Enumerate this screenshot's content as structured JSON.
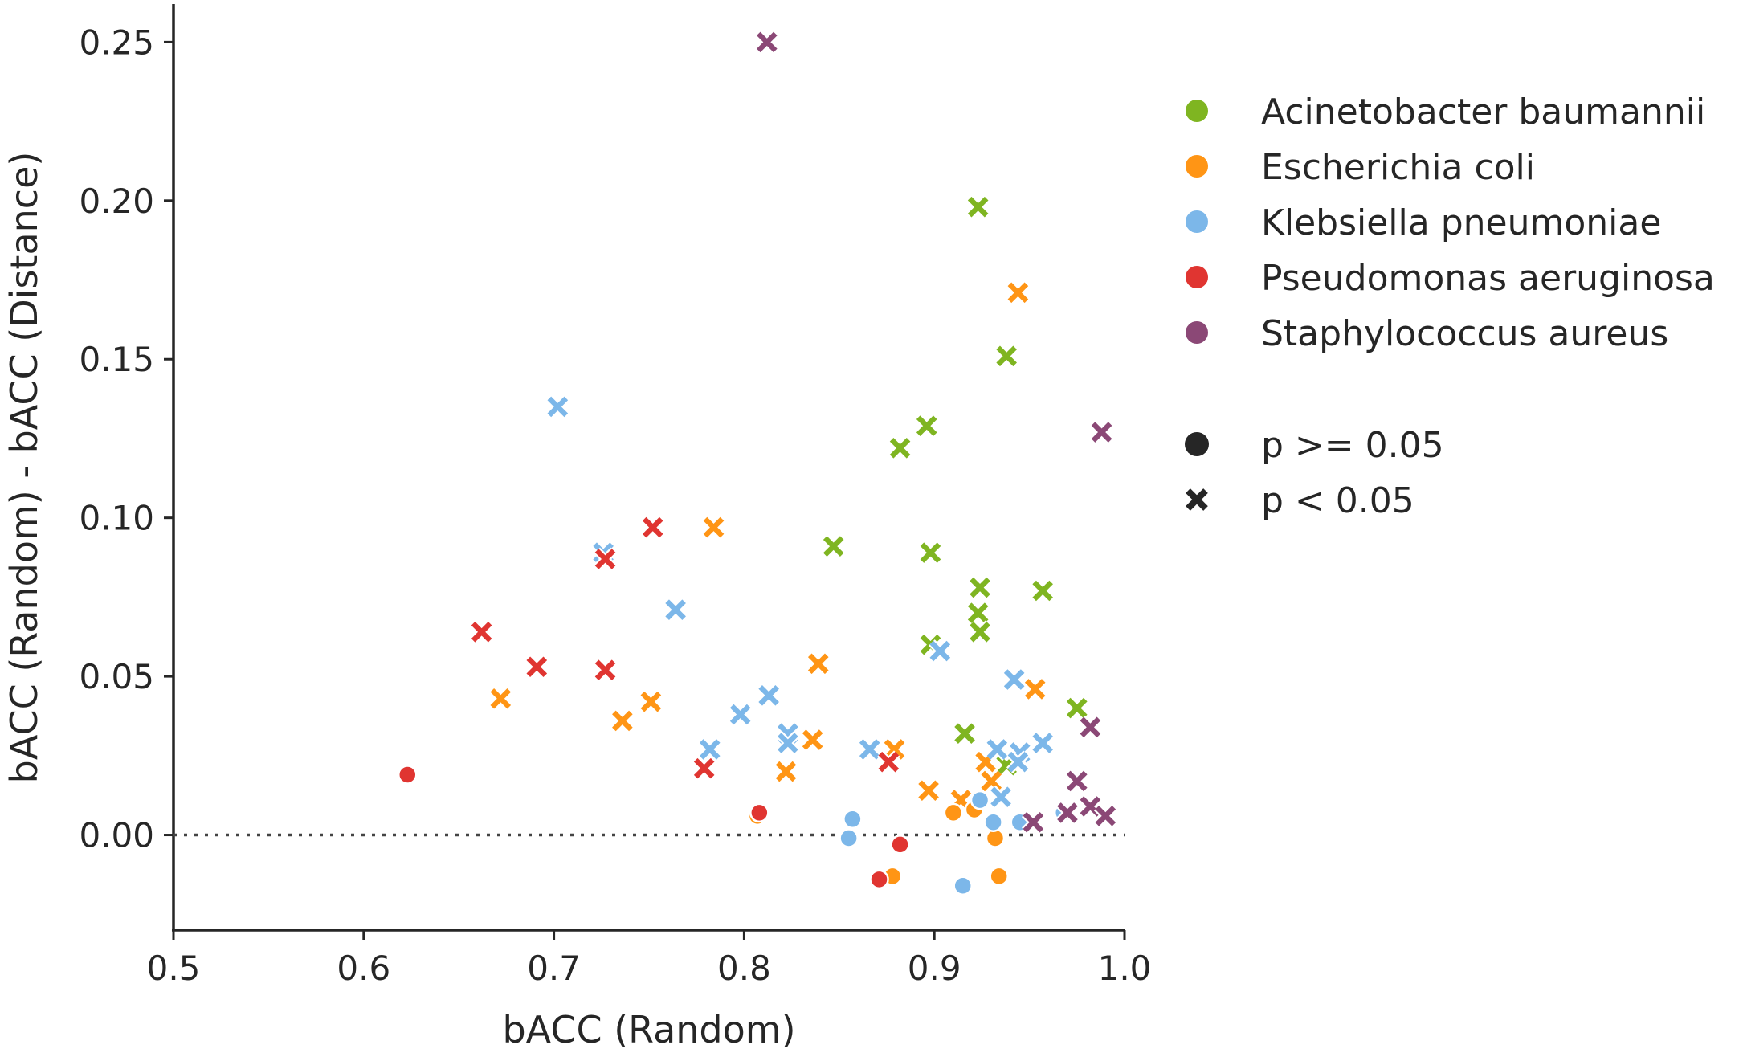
{
  "chart_data": {
    "type": "scatter",
    "title": "",
    "xlabel": "bACC (Random)",
    "ylabel": "bACC (Random) - bACC (Distance)",
    "xlim": [
      0.5,
      1.0
    ],
    "ylim": [
      -0.03,
      0.262
    ],
    "xticks": [
      "0.5",
      "0.6",
      "0.7",
      "0.8",
      "0.9",
      "1.0"
    ],
    "yticks": [
      "0.00",
      "0.05",
      "0.10",
      "0.15",
      "0.20",
      "0.25"
    ],
    "reference_line": {
      "y": 0,
      "style": "dotted"
    },
    "legend": {
      "placement": "right",
      "hue_entries": [
        "Acinetobacter baumannii",
        "Escherichia coli",
        "Klebsiella pneumoniae",
        "Pseudomonas aeruginosa",
        "Staphylococcus aureus"
      ],
      "style_entries": [
        {
          "label": "p >= 0.05",
          "marker": "circle"
        },
        {
          "label": "p < 0.05",
          "marker": "x"
        }
      ]
    },
    "series": [
      {
        "name": "Acinetobacter baumannii",
        "color": "#7fb521",
        "points": [
          {
            "x": 0.923,
            "y": 0.198,
            "p": "<0.05"
          },
          {
            "x": 0.938,
            "y": 0.151,
            "p": "<0.05"
          },
          {
            "x": 0.896,
            "y": 0.129,
            "p": "<0.05"
          },
          {
            "x": 0.882,
            "y": 0.122,
            "p": "<0.05"
          },
          {
            "x": 0.847,
            "y": 0.091,
            "p": "<0.05"
          },
          {
            "x": 0.898,
            "y": 0.089,
            "p": "<0.05"
          },
          {
            "x": 0.924,
            "y": 0.078,
            "p": "<0.05"
          },
          {
            "x": 0.957,
            "y": 0.077,
            "p": "<0.05"
          },
          {
            "x": 0.923,
            "y": 0.07,
            "p": "<0.05"
          },
          {
            "x": 0.924,
            "y": 0.064,
            "p": "<0.05"
          },
          {
            "x": 0.898,
            "y": 0.06,
            "p": "<0.05"
          },
          {
            "x": 0.975,
            "y": 0.04,
            "p": "<0.05"
          },
          {
            "x": 0.916,
            "y": 0.032,
            "p": "<0.05"
          },
          {
            "x": 0.938,
            "y": 0.022,
            "p": "<0.05"
          }
        ]
      },
      {
        "name": "Escherichia coli",
        "color": "#ff9515",
        "points": [
          {
            "x": 0.944,
            "y": 0.171,
            "p": "<0.05"
          },
          {
            "x": 0.784,
            "y": 0.097,
            "p": "<0.05"
          },
          {
            "x": 0.839,
            "y": 0.054,
            "p": "<0.05"
          },
          {
            "x": 0.953,
            "y": 0.046,
            "p": "<0.05"
          },
          {
            "x": 0.672,
            "y": 0.043,
            "p": "<0.05"
          },
          {
            "x": 0.751,
            "y": 0.042,
            "p": "<0.05"
          },
          {
            "x": 0.736,
            "y": 0.036,
            "p": "<0.05"
          },
          {
            "x": 0.836,
            "y": 0.03,
            "p": "<0.05"
          },
          {
            "x": 0.879,
            "y": 0.027,
            "p": "<0.05"
          },
          {
            "x": 0.927,
            "y": 0.023,
            "p": "<0.05"
          },
          {
            "x": 0.822,
            "y": 0.02,
            "p": "<0.05"
          },
          {
            "x": 0.93,
            "y": 0.017,
            "p": "<0.05"
          },
          {
            "x": 0.897,
            "y": 0.014,
            "p": "<0.05"
          },
          {
            "x": 0.914,
            "y": 0.011,
            "p": "<0.05"
          },
          {
            "x": 0.91,
            "y": 0.007,
            "p": ">=0.05"
          },
          {
            "x": 0.921,
            "y": 0.008,
            "p": ">=0.05"
          },
          {
            "x": 0.807,
            "y": 0.006,
            "p": ">=0.05"
          },
          {
            "x": 0.932,
            "y": -0.001,
            "p": ">=0.05"
          },
          {
            "x": 0.878,
            "y": -0.013,
            "p": ">=0.05"
          },
          {
            "x": 0.934,
            "y": -0.013,
            "p": ">=0.05"
          }
        ]
      },
      {
        "name": "Klebsiella pneumoniae",
        "color": "#7cb7e9",
        "points": [
          {
            "x": 0.702,
            "y": 0.135,
            "p": "<0.05"
          },
          {
            "x": 0.726,
            "y": 0.089,
            "p": "<0.05"
          },
          {
            "x": 0.764,
            "y": 0.071,
            "p": "<0.05"
          },
          {
            "x": 0.903,
            "y": 0.058,
            "p": "<0.05"
          },
          {
            "x": 0.942,
            "y": 0.049,
            "p": "<0.05"
          },
          {
            "x": 0.813,
            "y": 0.044,
            "p": "<0.05"
          },
          {
            "x": 0.798,
            "y": 0.038,
            "p": "<0.05"
          },
          {
            "x": 0.823,
            "y": 0.032,
            "p": "<0.05"
          },
          {
            "x": 0.823,
            "y": 0.029,
            "p": "<0.05"
          },
          {
            "x": 0.957,
            "y": 0.029,
            "p": "<0.05"
          },
          {
            "x": 0.866,
            "y": 0.027,
            "p": "<0.05"
          },
          {
            "x": 0.782,
            "y": 0.027,
            "p": "<0.05"
          },
          {
            "x": 0.933,
            "y": 0.027,
            "p": "<0.05"
          },
          {
            "x": 0.945,
            "y": 0.026,
            "p": "<0.05"
          },
          {
            "x": 0.944,
            "y": 0.023,
            "p": "<0.05"
          },
          {
            "x": 0.935,
            "y": 0.012,
            "p": "<0.05"
          },
          {
            "x": 0.924,
            "y": 0.011,
            "p": ">=0.05"
          },
          {
            "x": 0.857,
            "y": 0.005,
            "p": ">=0.05"
          },
          {
            "x": 0.931,
            "y": 0.004,
            "p": ">=0.05"
          },
          {
            "x": 0.945,
            "y": 0.004,
            "p": ">=0.05"
          },
          {
            "x": 0.968,
            "y": 0.007,
            "p": ">=0.05"
          },
          {
            "x": 0.855,
            "y": -0.001,
            "p": ">=0.05"
          },
          {
            "x": 0.915,
            "y": -0.016,
            "p": ">=0.05"
          }
        ]
      },
      {
        "name": "Pseudomonas aeruginosa",
        "color": "#e03531",
        "points": [
          {
            "x": 0.752,
            "y": 0.097,
            "p": "<0.05"
          },
          {
            "x": 0.727,
            "y": 0.087,
            "p": "<0.05"
          },
          {
            "x": 0.662,
            "y": 0.064,
            "p": "<0.05"
          },
          {
            "x": 0.691,
            "y": 0.053,
            "p": "<0.05"
          },
          {
            "x": 0.727,
            "y": 0.052,
            "p": "<0.05"
          },
          {
            "x": 0.876,
            "y": 0.023,
            "p": "<0.05"
          },
          {
            "x": 0.779,
            "y": 0.021,
            "p": "<0.05"
          },
          {
            "x": 0.623,
            "y": 0.019,
            "p": ">=0.05"
          },
          {
            "x": 0.808,
            "y": 0.007,
            "p": ">=0.05"
          },
          {
            "x": 0.882,
            "y": -0.003,
            "p": ">=0.05"
          },
          {
            "x": 0.871,
            "y": -0.014,
            "p": ">=0.05"
          }
        ]
      },
      {
        "name": "Staphylococcus aureus",
        "color": "#8b4876",
        "points": [
          {
            "x": 0.812,
            "y": 0.25,
            "p": "<0.05"
          },
          {
            "x": 0.988,
            "y": 0.127,
            "p": "<0.05"
          },
          {
            "x": 0.982,
            "y": 0.034,
            "p": "<0.05"
          },
          {
            "x": 0.975,
            "y": 0.017,
            "p": "<0.05"
          },
          {
            "x": 0.982,
            "y": 0.009,
            "p": "<0.05"
          },
          {
            "x": 0.97,
            "y": 0.007,
            "p": "<0.05"
          },
          {
            "x": 0.99,
            "y": 0.006,
            "p": "<0.05"
          },
          {
            "x": 0.952,
            "y": 0.004,
            "p": "<0.05"
          }
        ]
      }
    ]
  }
}
